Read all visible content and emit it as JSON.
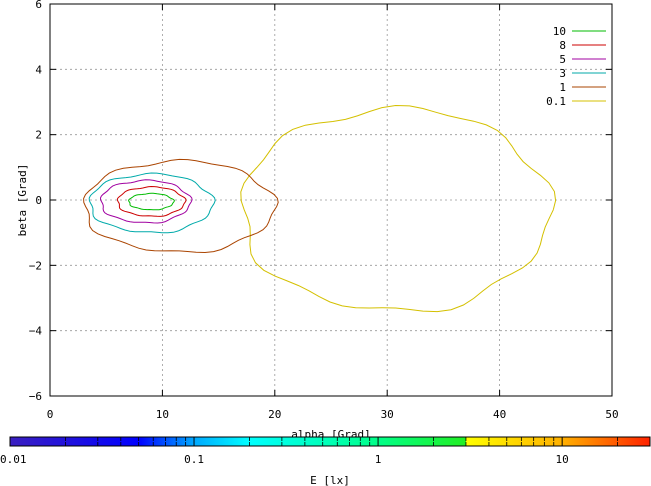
{
  "chart_data": {
    "type": "heatmap",
    "title": "",
    "xlabel": "alpha [Grad]",
    "ylabel": "beta [Grad]",
    "xlim": [
      0,
      50
    ],
    "ylim": [
      6,
      -6
    ],
    "x_ticks": [
      0,
      10,
      20,
      30,
      40,
      50
    ],
    "y_ticks": [
      -6,
      -4,
      -2,
      0,
      2,
      4,
      6
    ],
    "grid": true,
    "colorbar": {
      "label": "E [lx]",
      "scale": "log",
      "range": [
        0.01,
        30
      ],
      "tick_labels": [
        "0.01",
        "0.1",
        "1",
        "10"
      ],
      "tick_values": [
        0.01,
        0.1,
        1,
        10
      ],
      "stops": [
        {
          "value": 0.01,
          "color": "#3a1fc0"
        },
        {
          "value": 0.05,
          "color": "#0000ff"
        },
        {
          "value": 0.1,
          "color": "#00a8ff"
        },
        {
          "value": 0.2,
          "color": "#00ffff"
        },
        {
          "value": 1.0,
          "color": "#00ff88"
        },
        {
          "value": 3.0,
          "color": "#22ee22"
        },
        {
          "value": 3.01,
          "color": "#ffff00"
        },
        {
          "value": 10,
          "color": "#ffb000"
        },
        {
          "value": 30,
          "color": "#ff2200"
        }
      ]
    },
    "legend": {
      "placement": "top-right",
      "entries": [
        {
          "label": "10",
          "color": "#00bb00"
        },
        {
          "label": "8",
          "color": "#cc0000"
        },
        {
          "label": "5",
          "color": "#a000a0"
        },
        {
          "label": "3",
          "color": "#00aaaa"
        },
        {
          "label": "1",
          "color": "#aa4400"
        },
        {
          "label": "0.1",
          "color": "#d4c000"
        }
      ]
    },
    "contours": [
      {
        "level": 0.1,
        "color": "#d4c000",
        "center": [
          33,
          -0.1
        ],
        "alpha_range": [
          17,
          44.5
        ],
        "beta_range": [
          -3.4,
          2.8
        ]
      },
      {
        "level": 1,
        "color": "#aa4400",
        "center": [
          11,
          0.1
        ],
        "alpha_range": [
          3,
          20
        ],
        "beta_range": [
          -1.6,
          1.2
        ]
      },
      {
        "level": 3,
        "color": "#00aaaa",
        "center": [
          9,
          0.1
        ],
        "alpha_range": [
          3.5,
          14.5
        ],
        "beta_range": [
          -1.0,
          0.8
        ]
      },
      {
        "level": 5,
        "color": "#a000a0",
        "center": [
          9,
          0.1
        ],
        "alpha_range": [
          4.5,
          12.5
        ],
        "beta_range": [
          -0.7,
          0.6
        ]
      },
      {
        "level": 8,
        "color": "#cc0000",
        "center": [
          9,
          0.1
        ],
        "alpha_range": [
          6,
          12
        ],
        "beta_range": [
          -0.5,
          0.4
        ]
      },
      {
        "level": 10,
        "color": "#00bb00",
        "center": [
          9,
          0.1
        ],
        "alpha_range": [
          7,
          11
        ],
        "beta_range": [
          -0.3,
          0.2
        ]
      }
    ]
  }
}
